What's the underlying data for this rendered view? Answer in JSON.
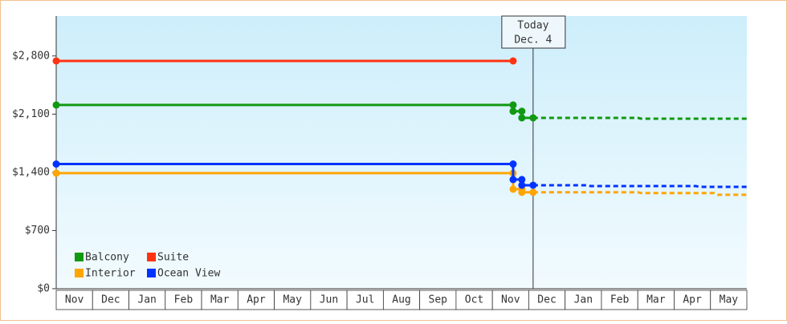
{
  "chart_data": {
    "type": "step-line",
    "categories": [
      "Nov",
      "Dec",
      "Jan",
      "Feb",
      "Mar",
      "Apr",
      "May",
      "Jun",
      "Jul",
      "Aug",
      "Sep",
      "Oct",
      "Nov",
      "Dec",
      "Jan",
      "Feb",
      "Mar",
      "Apr",
      "May"
    ],
    "xlim": [
      0,
      19
    ],
    "ylim": [
      0,
      3280
    ],
    "yticks": [
      {
        "value": 0,
        "label": "$0"
      },
      {
        "value": 700,
        "label": "$700"
      },
      {
        "value": 1400,
        "label": "$1,400"
      },
      {
        "value": 2100,
        "label": "$2,100"
      },
      {
        "value": 2800,
        "label": "$2,800"
      }
    ],
    "today": {
      "x": 13.12,
      "label": "Today",
      "date": "Dec. 4"
    },
    "series": [
      {
        "name": "Balcony",
        "color": "#119911",
        "x": [
          0,
          12.57,
          12.57,
          12.81,
          12.81,
          13.12,
          16.0,
          16.1,
          19
        ],
        "values": [
          2210,
          2210,
          2135,
          2135,
          2055,
          2055,
          2055,
          2045,
          2045
        ]
      },
      {
        "name": "Suite",
        "color": "#ff3311",
        "x": [
          0,
          12.57
        ],
        "values": [
          2740,
          2740
        ]
      },
      {
        "name": "Interior",
        "color": "#ffa500",
        "x": [
          0,
          12.57,
          12.57,
          12.81,
          12.81,
          13.12,
          16.0,
          16.1,
          18.1,
          18.2,
          19
        ],
        "values": [
          1390,
          1390,
          1197,
          1197,
          1160,
          1160,
          1160,
          1150,
          1150,
          1130,
          1130
        ]
      },
      {
        "name": "Ocean View",
        "color": "#0033ff",
        "x": [
          0,
          12.57,
          12.57,
          12.81,
          12.81,
          13.12,
          14.6,
          14.7,
          17.6,
          17.7,
          19
        ],
        "values": [
          1500,
          1500,
          1313,
          1313,
          1245,
          1245,
          1245,
          1235,
          1235,
          1225,
          1225
        ]
      }
    ]
  }
}
